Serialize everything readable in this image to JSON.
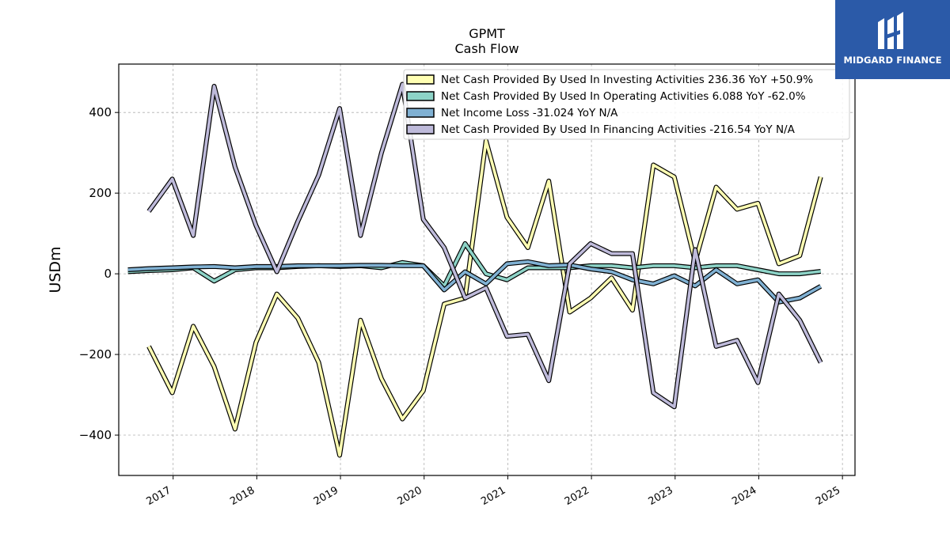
{
  "brand": {
    "name": "MIDGARD FINANCE",
    "bg_color": "#2b5aa8"
  },
  "chart_data": {
    "type": "line",
    "title": "GPMT",
    "subtitle": "Cash Flow",
    "ylabel": "USDm",
    "xlabel": "",
    "xlim": [
      2016.35,
      2025.15
    ],
    "ylim": [
      -500,
      520
    ],
    "yticks": [
      -400,
      -200,
      0,
      200,
      400
    ],
    "ytick_labels": [
      "−400",
      "−200",
      "0",
      "200",
      "400"
    ],
    "xticks": [
      2017,
      2018,
      2019,
      2020,
      2021,
      2022,
      2023,
      2024,
      2025
    ],
    "xtick_labels": [
      "2017",
      "2018",
      "2019",
      "2020",
      "2021",
      "2022",
      "2023",
      "2024",
      "2025"
    ],
    "grid": true,
    "legend_position": "top-right",
    "series": [
      {
        "name": "Net Cash Provided By Used In Investing Activities",
        "legend": "Net Cash Provided By Used In Investing Activities  236.36 YoY +50.9%",
        "color": "#ffffb3",
        "x": [
          2016.71,
          2016.99,
          2017.24,
          2017.49,
          2017.74,
          2017.99,
          2018.24,
          2018.49,
          2018.74,
          2018.99,
          2019.24,
          2019.49,
          2019.74,
          2019.99,
          2020.24,
          2020.49,
          2020.74,
          2020.99,
          2021.24,
          2021.49,
          2021.74,
          2021.99,
          2022.24,
          2022.49,
          2022.74,
          2022.99,
          2023.24,
          2023.49,
          2023.74,
          2023.99,
          2024.24,
          2024.49,
          2024.74
        ],
        "values": [
          -180,
          -295,
          -130,
          -230,
          -385,
          -170,
          -50,
          -110,
          -220,
          -450,
          -115,
          -260,
          -360,
          -290,
          -75,
          -60,
          330,
          140,
          65,
          230,
          -95,
          -60,
          -10,
          -90,
          270,
          240,
          30,
          215,
          160,
          175,
          25,
          45,
          240
        ]
      },
      {
        "name": "Net Cash Provided By Used In Operating Activities",
        "legend": "Net Cash Provided By Used In Operating Activities  6.088 YoY -62.0%",
        "color": "#8dd3c7",
        "x": [
          2016.46,
          2016.71,
          2016.99,
          2017.24,
          2017.49,
          2017.74,
          2017.99,
          2018.24,
          2018.49,
          2018.74,
          2018.99,
          2019.24,
          2019.49,
          2019.74,
          2019.99,
          2020.24,
          2020.49,
          2020.74,
          2020.99,
          2021.24,
          2021.49,
          2021.74,
          2021.99,
          2022.24,
          2022.49,
          2022.74,
          2022.99,
          2023.24,
          2023.49,
          2023.74,
          2023.99,
          2024.24,
          2024.49,
          2024.74
        ],
        "values": [
          5,
          8,
          10,
          15,
          -18,
          10,
          15,
          15,
          18,
          20,
          18,
          20,
          15,
          28,
          20,
          -30,
          75,
          0,
          -15,
          15,
          15,
          15,
          20,
          20,
          15,
          20,
          20,
          15,
          20,
          20,
          10,
          0,
          0,
          6
        ]
      },
      {
        "name": "Net Income Loss",
        "legend": "Net Income Loss  -31.024 YoY N/A",
        "color": "#80b1d3",
        "x": [
          2016.46,
          2016.71,
          2016.99,
          2017.24,
          2017.49,
          2017.74,
          2017.99,
          2018.24,
          2018.49,
          2018.74,
          2018.99,
          2019.24,
          2019.49,
          2019.74,
          2019.99,
          2020.24,
          2020.49,
          2020.74,
          2020.99,
          2021.24,
          2021.49,
          2021.74,
          2021.99,
          2022.24,
          2022.49,
          2022.74,
          2022.99,
          2023.24,
          2023.49,
          2023.74,
          2023.99,
          2024.24,
          2024.49,
          2024.74
        ],
        "values": [
          10,
          13,
          15,
          17,
          18,
          15,
          18,
          18,
          20,
          20,
          20,
          21,
          21,
          20,
          20,
          -40,
          5,
          -25,
          25,
          30,
          20,
          22,
          12,
          5,
          -15,
          -25,
          -5,
          -30,
          10,
          -25,
          -15,
          -70,
          -60,
          -31
        ]
      },
      {
        "name": "Net Cash Provided By Used In Financing Activities",
        "legend": "Net Cash Provided By Used In Financing Activities  -216.54 YoY N/A",
        "color": "#bebada",
        "x": [
          2016.71,
          2016.99,
          2017.24,
          2017.49,
          2017.74,
          2017.99,
          2018.24,
          2018.49,
          2018.74,
          2018.99,
          2019.24,
          2019.49,
          2019.74,
          2019.99,
          2020.24,
          2020.49,
          2020.74,
          2020.99,
          2021.24,
          2021.49,
          2021.74,
          2021.99,
          2022.24,
          2022.49,
          2022.74,
          2022.99,
          2023.24,
          2023.49,
          2023.74,
          2023.99,
          2024.24,
          2024.49,
          2024.74
        ],
        "values": [
          155,
          235,
          95,
          465,
          265,
          120,
          5,
          130,
          245,
          410,
          95,
          300,
          470,
          135,
          65,
          -60,
          -35,
          -155,
          -150,
          -265,
          25,
          75,
          50,
          50,
          -295,
          -330,
          60,
          -180,
          -165,
          -270,
          -50,
          -115,
          -220
        ]
      }
    ]
  }
}
